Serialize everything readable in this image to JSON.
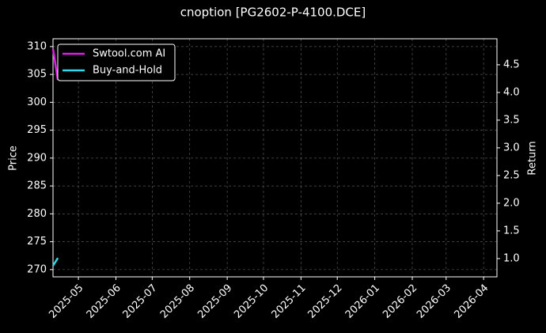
{
  "chart_data": {
    "type": "line",
    "title": "cnoption [PG2602-P-4100.DCE]",
    "ylabel": "Price",
    "y2label": "Return",
    "x": [
      "2025-04-10",
      "2025-04-14"
    ],
    "series": [
      {
        "name": "Swtool.com AI",
        "color": "#e020e8",
        "values": [
          309.6,
          304.0
        ]
      },
      {
        "name": "Buy-and-Hold",
        "color": "#30d8e8",
        "values": [
          0.87,
          1.01
        ],
        "axis": "y2"
      }
    ],
    "xlim": [
      "2025-04-10",
      "2026-04-12"
    ],
    "xticks": [
      {
        "value": "2025-05-01",
        "label": "2025-05"
      },
      {
        "value": "2025-06-01",
        "label": "2025-06"
      },
      {
        "value": "2025-07-01",
        "label": "2025-07"
      },
      {
        "value": "2025-08-01",
        "label": "2025-08"
      },
      {
        "value": "2025-09-01",
        "label": "2025-09"
      },
      {
        "value": "2025-10-01",
        "label": "2025-10"
      },
      {
        "value": "2025-11-01",
        "label": "2025-11"
      },
      {
        "value": "2025-12-01",
        "label": "2025-12"
      },
      {
        "value": "2026-01-01",
        "label": "2026-01"
      },
      {
        "value": "2026-02-01",
        "label": "2026-02"
      },
      {
        "value": "2026-03-01",
        "label": "2026-03"
      },
      {
        "value": "2026-04-01",
        "label": "2026-04"
      }
    ],
    "ylim": [
      268.7,
      311.4
    ],
    "yticks": [
      270,
      275,
      280,
      285,
      290,
      295,
      300,
      305,
      310
    ],
    "y2lim": [
      0.67,
      4.97
    ],
    "y2ticks": [
      {
        "value": 1,
        "label": "1.0"
      },
      1.5,
      {
        "value": 2,
        "label": "2.0"
      },
      2.5,
      {
        "value": 3,
        "label": "3.0"
      },
      3.5,
      {
        "value": 4,
        "label": "4.0"
      },
      4.5
    ],
    "grid": true,
    "legend": "upper left"
  }
}
